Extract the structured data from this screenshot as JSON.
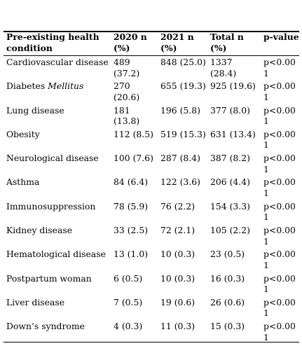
{
  "table": {
    "headers": [
      "Pre-existing health condition",
      "2020 n (%)",
      "2021 n (%)",
      "Total n (%)",
      "p-value"
    ],
    "rows": [
      {
        "condition": "Cardiovascular disease",
        "c2020": "489 (37.2)",
        "c2021": "848 (25.0)",
        "total": "1337 (28.4)",
        "p": "p<0.001"
      },
      {
        "condition_main": "Diabetes ",
        "condition_ital": "Mellitus",
        "c2020": "270 (20.6)",
        "c2021": "655 (19.3)",
        "total": "925 (19.6)",
        "p": "p<0.001"
      },
      {
        "condition": "Lung disease",
        "c2020": "181 (13.8)",
        "c2021": "196 (5.8)",
        "total": "377 (8.0)",
        "p": "p<0.001"
      },
      {
        "condition": "Obesity",
        "c2020": "112 (8.5)",
        "c2021": "519 (15.3)",
        "total": "631 (13.4)",
        "p": "p<0.001"
      },
      {
        "condition": "Neurological disease",
        "c2020": "100 (7.6)",
        "c2021": "287 (8.4)",
        "total": "387 (8.2)",
        "p": "p<0.001"
      },
      {
        "condition": "Asthma",
        "c2020": "84 (6.4)",
        "c2021": "122 (3.6)",
        "total": "206 (4.4)",
        "p": "p<0.001"
      },
      {
        "condition": "Immunosuppression",
        "c2020": "78 (5.9)",
        "c2021": "76 (2.2)",
        "total": "154 (3.3)",
        "p": "p<0.001"
      },
      {
        "condition": "Kidney disease",
        "c2020": "33 (2.5)",
        "c2021": "72 (2.1)",
        "total": "105 (2.2)",
        "p": "p<0.001"
      },
      {
        "condition": "Hematological disease",
        "c2020": "13 (1.0)",
        "c2021": "10 (0.3)",
        "total": "23 (0.5)",
        "p": "p<0.001"
      },
      {
        "condition": "Postpartum woman",
        "c2020": "6 (0.5)",
        "c2021": "10 (0.3)",
        "total": "16 (0.3)",
        "p": "p<0.001"
      },
      {
        "condition": "Liver disease",
        "c2020": "7 (0.5)",
        "c2021": "19 (0.6)",
        "total": "26 (0.6)",
        "p": "p<0.001"
      },
      {
        "condition": "Down’s syndrome",
        "c2020": "4 (0.3)",
        "c2021": "11 (0.3)",
        "total": "15 (0.3)",
        "p": "p<0.001"
      }
    ]
  }
}
